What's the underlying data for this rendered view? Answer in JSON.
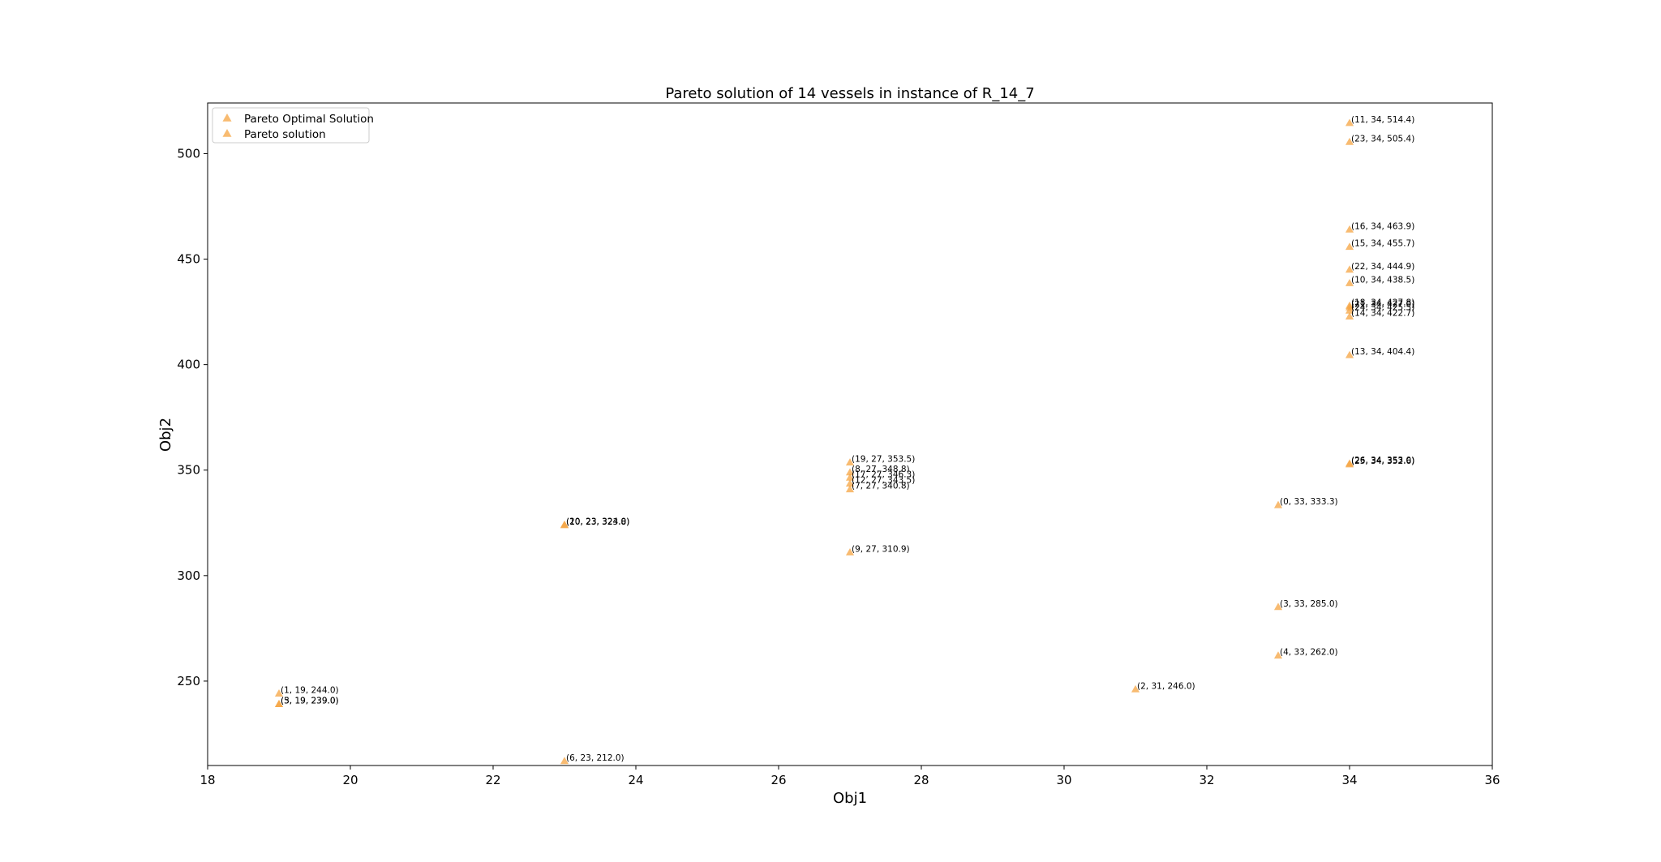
{
  "chart_data": {
    "type": "scatter",
    "title": "Pareto solution of 14 vessels in instance of R_14_7",
    "xlabel": "Obj1",
    "ylabel": "Obj2",
    "xlim": [
      18,
      36
    ],
    "ylim": [
      210,
      524
    ],
    "xticks": [
      18,
      20,
      22,
      24,
      26,
      28,
      30,
      32,
      34,
      36
    ],
    "yticks": [
      250,
      300,
      350,
      400,
      450,
      500
    ],
    "grid": false,
    "legend_position": "top-left",
    "marker_color": "#f5a442",
    "series": [
      {
        "name": "Pareto Optimal Solution",
        "points": []
      },
      {
        "name": "Pareto solution",
        "points": [
          {
            "label": "(11, 34, 514.4)",
            "x": 34,
            "y": 514.4
          },
          {
            "label": "(23, 34, 505.4)",
            "x": 34,
            "y": 505.4
          },
          {
            "label": "(16, 34, 463.9)",
            "x": 34,
            "y": 463.9
          },
          {
            "label": "(15, 34, 455.7)",
            "x": 34,
            "y": 455.7
          },
          {
            "label": "(22, 34, 444.9)",
            "x": 34,
            "y": 444.9
          },
          {
            "label": "(10, 34, 438.5)",
            "x": 34,
            "y": 438.5
          },
          {
            "label": "(18, 34, 427.8)",
            "x": 34,
            "y": 427.8
          },
          {
            "label": "(21, 34, 427.0)",
            "x": 34,
            "y": 427.0
          },
          {
            "label": "(24, 34, 425.5)",
            "x": 34,
            "y": 425.5
          },
          {
            "label": "(14, 34, 422.7)",
            "x": 34,
            "y": 422.7
          },
          {
            "label": "(13, 34, 404.4)",
            "x": 34,
            "y": 404.4
          },
          {
            "label": "(26, 34, 353.0)",
            "x": 34,
            "y": 353.0
          },
          {
            "label": "(25, 34, 352.6)",
            "x": 34,
            "y": 352.6
          },
          {
            "label": "(0, 33, 333.3)",
            "x": 33,
            "y": 333.3
          },
          {
            "label": "(3, 33, 285.0)",
            "x": 33,
            "y": 285.0
          },
          {
            "label": "(4, 33, 262.0)",
            "x": 33,
            "y": 262.0
          },
          {
            "label": "(2, 31, 246.0)",
            "x": 31,
            "y": 246.0
          },
          {
            "label": "(19, 27, 353.5)",
            "x": 27,
            "y": 353.5
          },
          {
            "label": "(8, 27, 348.8)",
            "x": 27,
            "y": 348.8
          },
          {
            "label": "(17, 27, 346.3)",
            "x": 27,
            "y": 346.3
          },
          {
            "label": "(12, 27, 343.5)",
            "x": 27,
            "y": 343.5
          },
          {
            "label": "(7, 27, 340.8)",
            "x": 27,
            "y": 340.8
          },
          {
            "label": "(9, 27, 310.9)",
            "x": 27,
            "y": 310.9
          },
          {
            "label": "(20, 23, 324.0)",
            "x": 23,
            "y": 324.0
          },
          {
            "label": "(10, 23, 323.8)",
            "x": 23,
            "y": 323.8
          },
          {
            "label": "(6, 23, 212.0)",
            "x": 23,
            "y": 212.0
          },
          {
            "label": "(1, 19, 244.0)",
            "x": 19,
            "y": 244.0
          },
          {
            "label": "(5, 19, 239.0)",
            "x": 19,
            "y": 239.0
          },
          {
            "label": "(3, 19, 239.0)",
            "x": 19,
            "y": 239.0
          }
        ]
      }
    ]
  }
}
